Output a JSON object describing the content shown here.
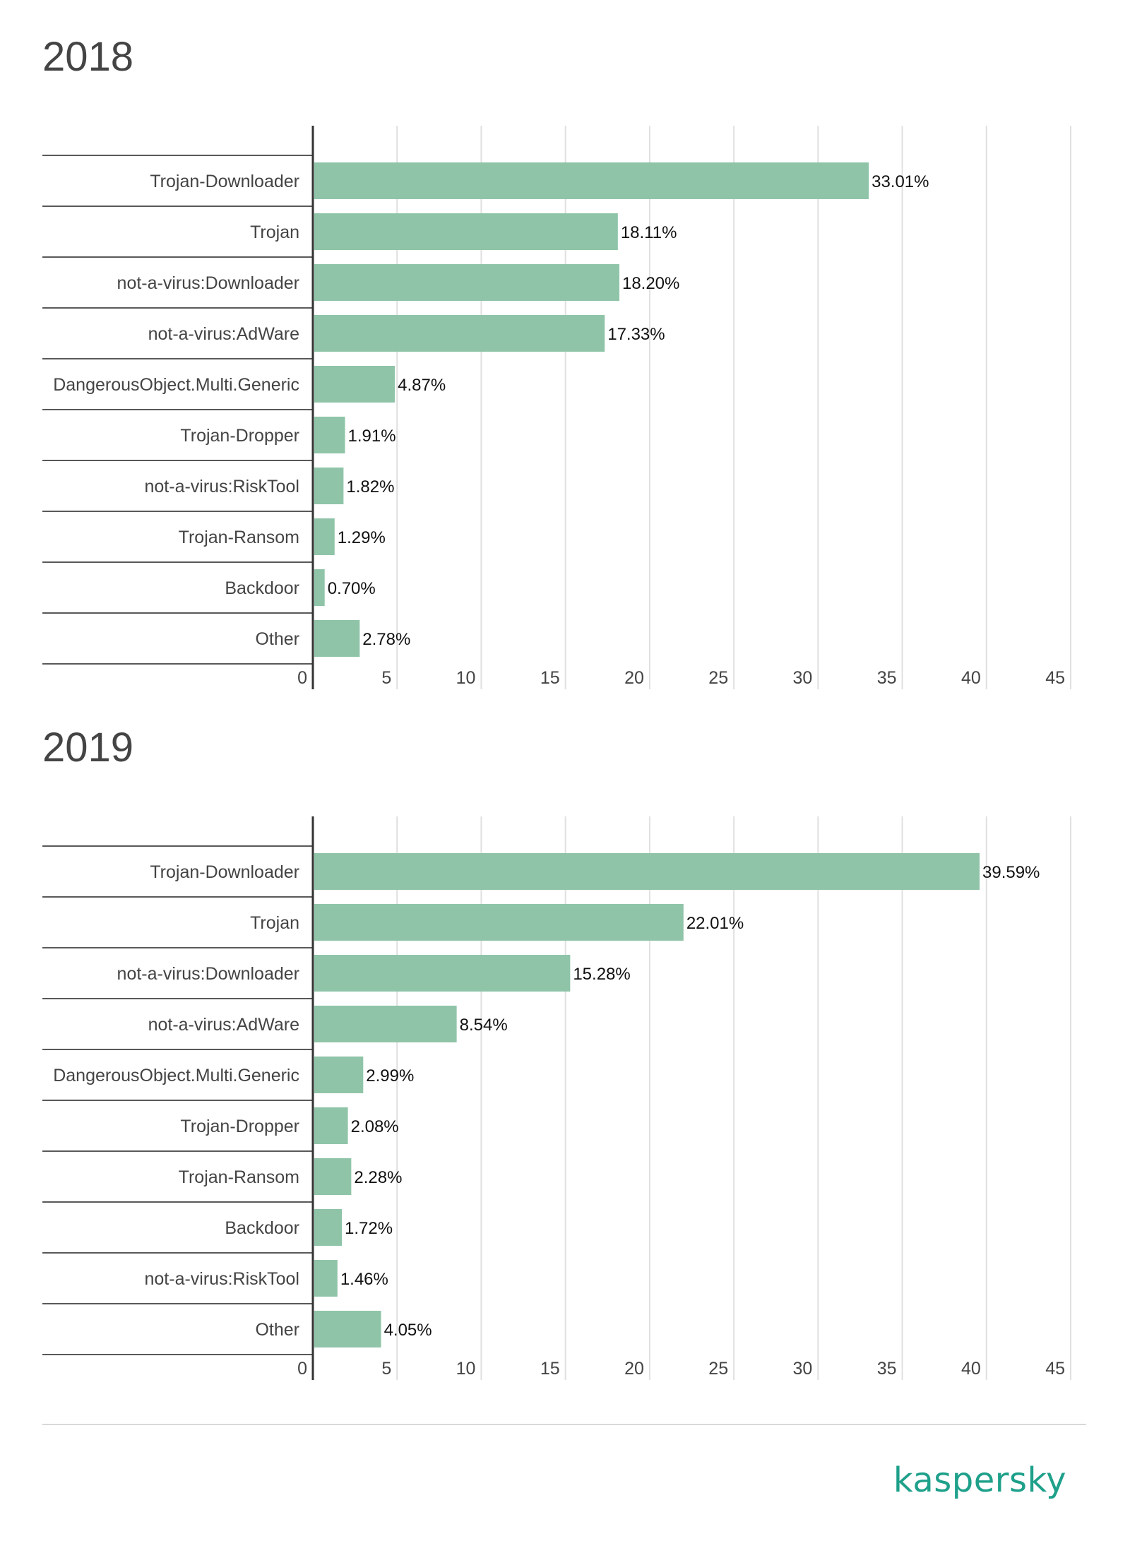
{
  "charts": [
    {
      "id": "2018",
      "title": "2018",
      "chart_data": {
        "type": "bar",
        "orientation": "horizontal",
        "title": "2018",
        "categories": [
          "Trojan-Downloader",
          "Trojan",
          "not-a-virus:Downloader",
          "not-a-virus:AdWare",
          "DangerousObject.Multi.Generic",
          "Trojan-Dropper",
          "not-a-virus:RiskTool",
          "Trojan-Ransom",
          "Backdoor",
          "Other"
        ],
        "values": [
          33.01,
          18.11,
          18.2,
          17.33,
          4.87,
          1.91,
          1.82,
          1.29,
          0.7,
          2.78
        ],
        "data_labels": [
          "33.01%",
          "18.11%",
          "18.20%",
          "17.33%",
          "4.87%",
          "1.91%",
          "1.82%",
          "1.29%",
          "0.70%",
          "2.78%"
        ],
        "xticks": [
          "0",
          "5",
          "10",
          "15",
          "20",
          "25",
          "30",
          "35",
          "40",
          "45"
        ],
        "xlim": [
          0,
          45
        ],
        "grid": true,
        "color": "#8fc4a8"
      }
    },
    {
      "id": "2019",
      "title": "2019",
      "chart_data": {
        "type": "bar",
        "orientation": "horizontal",
        "title": "2019",
        "categories": [
          "Trojan-Downloader",
          "Trojan",
          "not-a-virus:Downloader",
          "not-a-virus:AdWare",
          "DangerousObject.Multi.Generic",
          "Trojan-Dropper",
          "Trojan-Ransom",
          "Backdoor",
          "not-a-virus:RiskTool",
          "Other"
        ],
        "values": [
          39.59,
          22.01,
          15.28,
          8.54,
          2.99,
          2.08,
          2.28,
          1.72,
          1.46,
          4.05
        ],
        "data_labels": [
          "39.59%",
          "22.01%",
          "15.28%",
          "8.54%",
          "2.99%",
          "2.08%",
          "2.28%",
          "1.72%",
          "1.46%",
          "4.05%"
        ],
        "xticks": [
          "0",
          "5",
          "10",
          "15",
          "20",
          "25",
          "30",
          "35",
          "40",
          "45"
        ],
        "xlim": [
          0,
          45
        ],
        "grid": true,
        "color": "#8fc4a8"
      }
    }
  ],
  "logo": {
    "text": "kaspersky",
    "color": "#1ea08a"
  }
}
